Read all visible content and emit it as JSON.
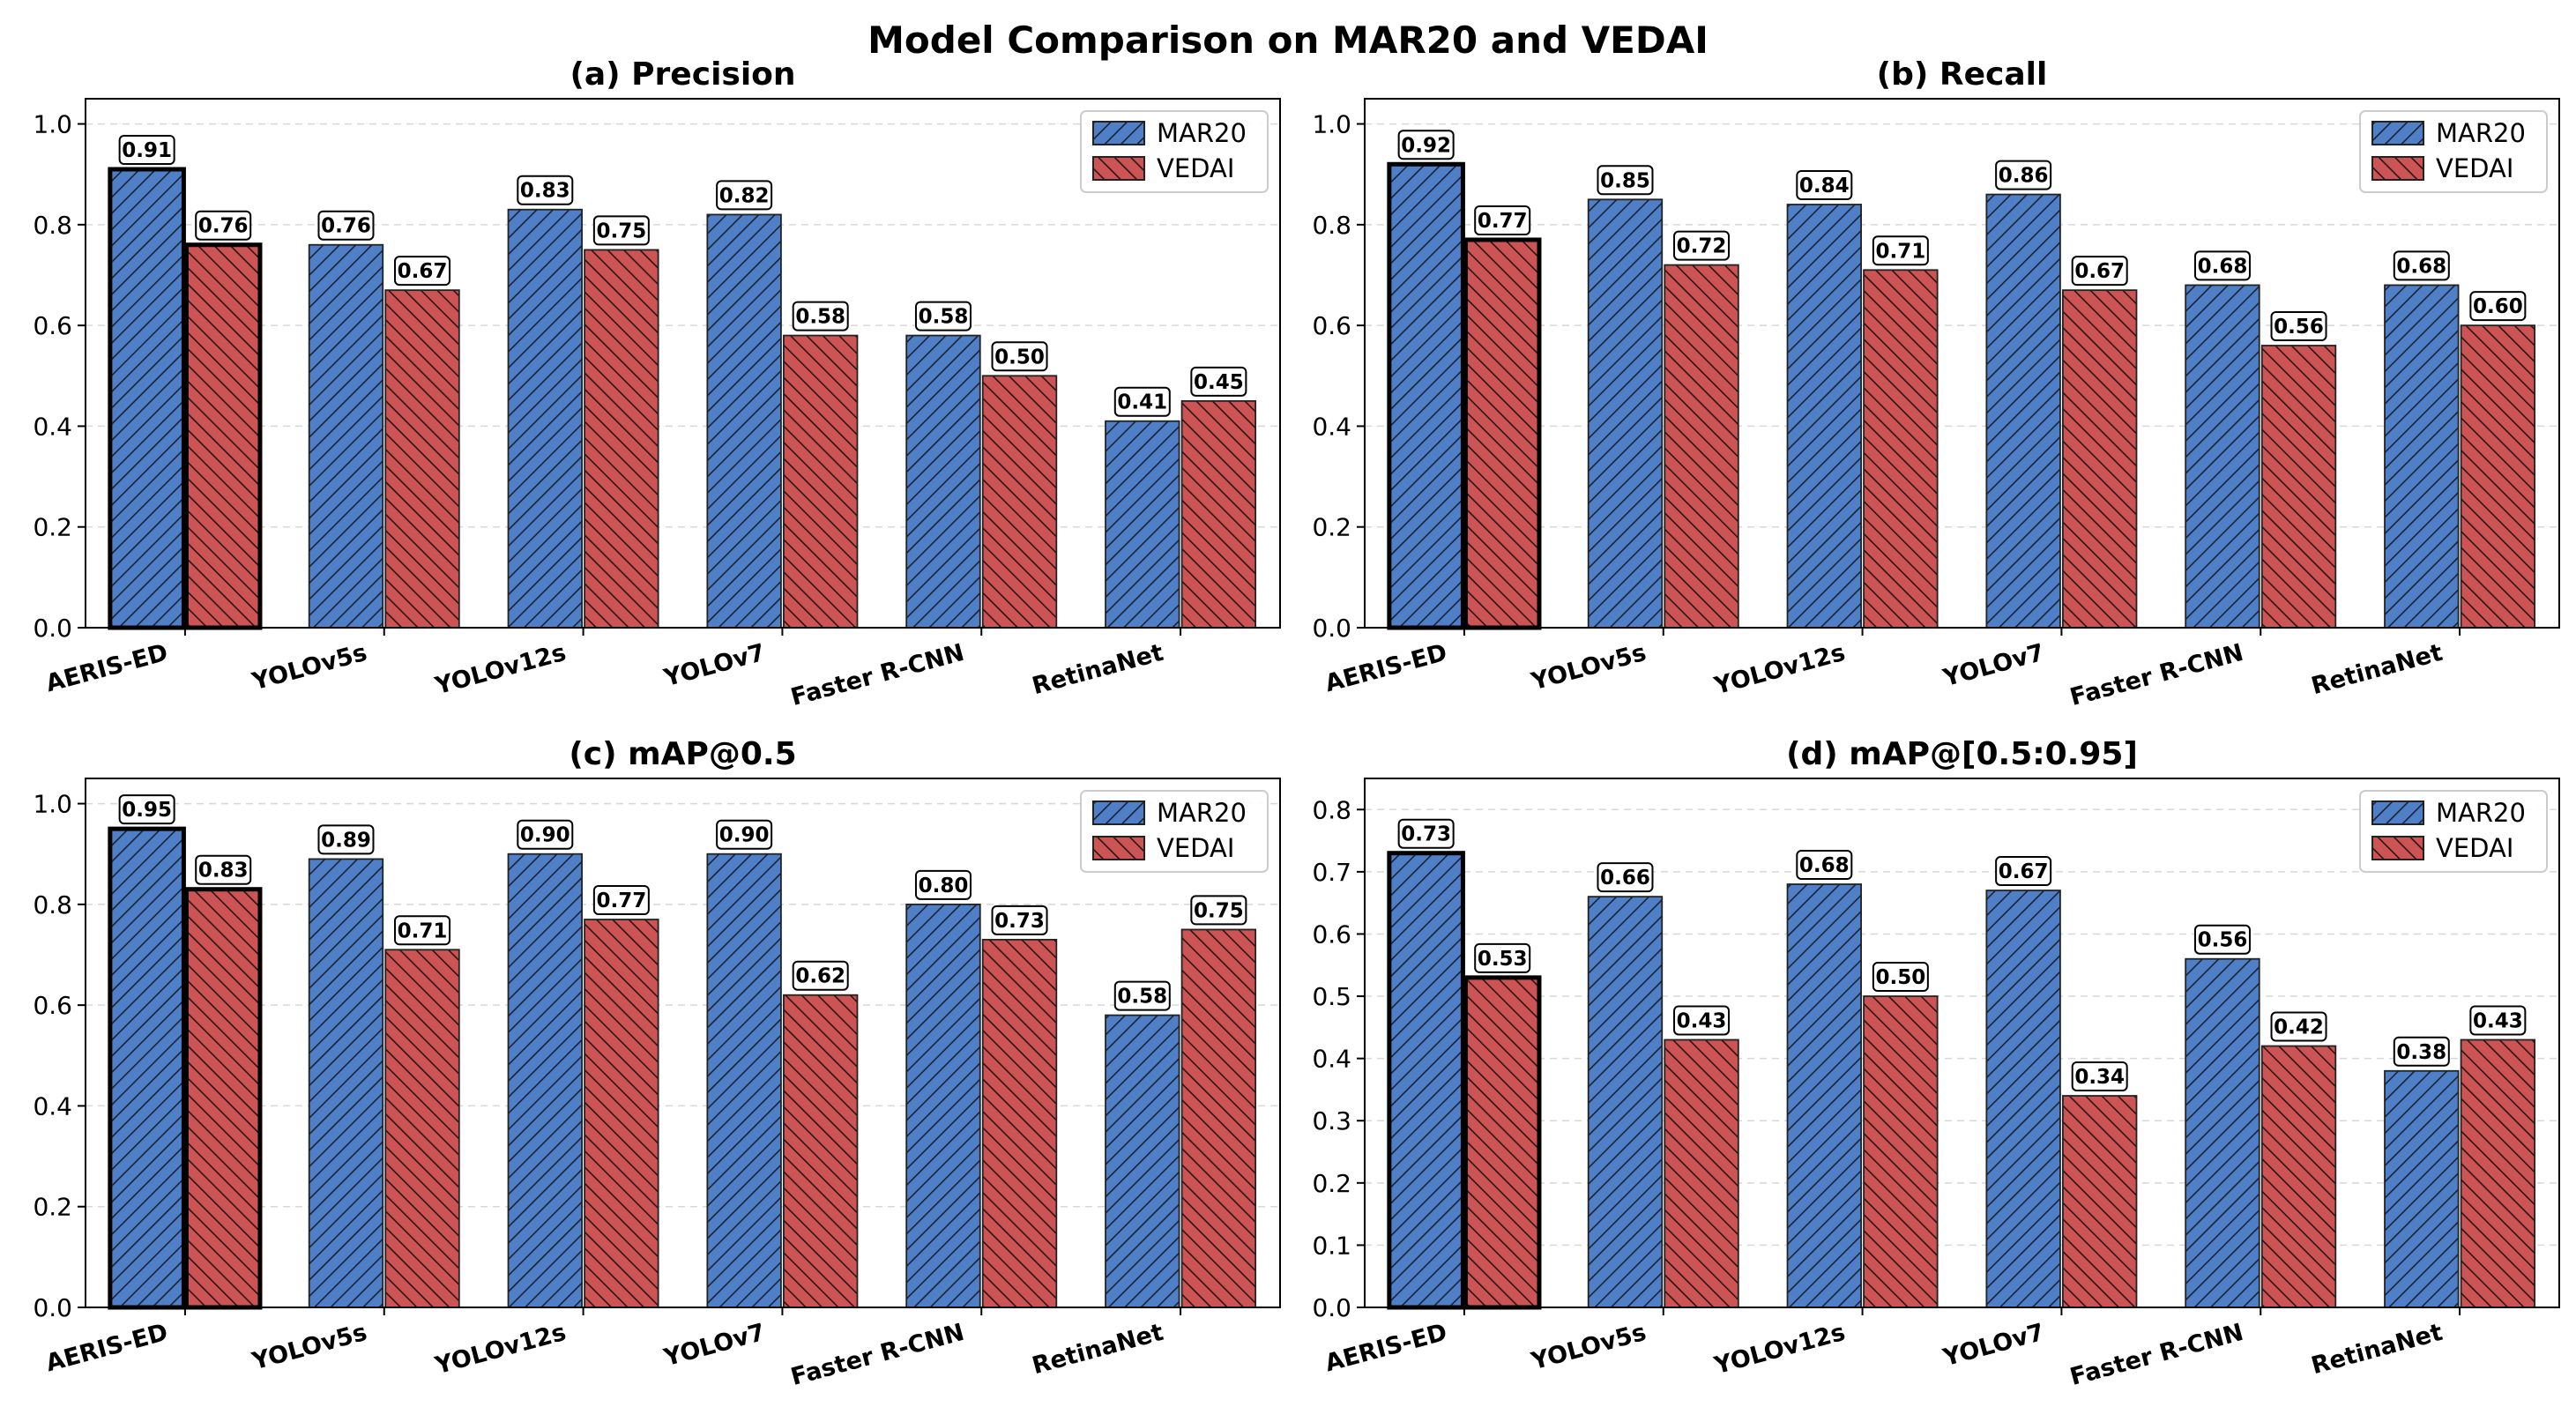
{
  "suptitle": "Model Comparison on MAR20 and VEDAI",
  "colors": {
    "MAR20": "#4f7fc6",
    "VEDAI": "#cc5454",
    "highlight_edge": "#000000",
    "grid": "#d8d8d8"
  },
  "chart_data": [
    {
      "type": "bar",
      "title": "(a) Precision",
      "categories": [
        "AERIS-ED",
        "YOLOv5s",
        "YOLOv12s",
        "YOLOv7",
        "Faster R-CNN",
        "RetinaNet"
      ],
      "series": [
        {
          "name": "MAR20",
          "values": [
            0.91,
            0.76,
            0.83,
            0.82,
            0.58,
            0.41
          ]
        },
        {
          "name": "VEDAI",
          "values": [
            0.76,
            0.67,
            0.75,
            0.58,
            0.5,
            0.45
          ]
        }
      ],
      "value_labels": {
        "MAR20": [
          "0.91",
          "0.76",
          "0.83",
          "0.82",
          "0.58",
          "0.41"
        ],
        "VEDAI": [
          "0.76",
          "0.67",
          "0.75",
          "0.58",
          "0.50",
          "0.45"
        ]
      },
      "ylim": [
        0,
        1.05
      ],
      "yticks": [
        0.0,
        0.2,
        0.4,
        0.6,
        0.8,
        1.0
      ],
      "ytick_labels": [
        "0.0",
        "0.2",
        "0.4",
        "0.6",
        "0.8",
        "1.0"
      ],
      "legend": [
        "MAR20",
        "VEDAI"
      ],
      "legend_position": "top-right",
      "grid": "y-dashed",
      "highlight_category": "AERIS-ED"
    },
    {
      "type": "bar",
      "title": "(b) Recall",
      "categories": [
        "AERIS-ED",
        "YOLOv5s",
        "YOLOv12s",
        "YOLOv7",
        "Faster R-CNN",
        "RetinaNet"
      ],
      "series": [
        {
          "name": "MAR20",
          "values": [
            0.92,
            0.85,
            0.84,
            0.86,
            0.68,
            0.68
          ]
        },
        {
          "name": "VEDAI",
          "values": [
            0.77,
            0.72,
            0.71,
            0.67,
            0.56,
            0.6
          ]
        }
      ],
      "value_labels": {
        "MAR20": [
          "0.92",
          "0.85",
          "0.84",
          "0.86",
          "0.68",
          "0.68"
        ],
        "VEDAI": [
          "0.77",
          "0.72",
          "0.71",
          "0.67",
          "0.56",
          "0.60"
        ]
      },
      "ylim": [
        0,
        1.05
      ],
      "yticks": [
        0.0,
        0.2,
        0.4,
        0.6,
        0.8,
        1.0
      ],
      "ytick_labels": [
        "0.0",
        "0.2",
        "0.4",
        "0.6",
        "0.8",
        "1.0"
      ],
      "legend": [
        "MAR20",
        "VEDAI"
      ],
      "legend_position": "top-right",
      "grid": "y-dashed",
      "highlight_category": "AERIS-ED"
    },
    {
      "type": "bar",
      "title": "(c) mAP@0.5",
      "categories": [
        "AERIS-ED",
        "YOLOv5s",
        "YOLOv12s",
        "YOLOv7",
        "Faster R-CNN",
        "RetinaNet"
      ],
      "series": [
        {
          "name": "MAR20",
          "values": [
            0.95,
            0.89,
            0.9,
            0.9,
            0.8,
            0.58
          ]
        },
        {
          "name": "VEDAI",
          "values": [
            0.83,
            0.71,
            0.77,
            0.62,
            0.73,
            0.75
          ]
        }
      ],
      "value_labels": {
        "MAR20": [
          "0.95",
          "0.89",
          "0.90",
          "0.90",
          "0.80",
          "0.58"
        ],
        "VEDAI": [
          "0.83",
          "0.71",
          "0.77",
          "0.62",
          "0.73",
          "0.75"
        ]
      },
      "ylim": [
        0,
        1.05
      ],
      "yticks": [
        0.0,
        0.2,
        0.4,
        0.6,
        0.8,
        1.0
      ],
      "ytick_labels": [
        "0.0",
        "0.2",
        "0.4",
        "0.6",
        "0.8",
        "1.0"
      ],
      "legend": [
        "MAR20",
        "VEDAI"
      ],
      "legend_position": "top-right",
      "grid": "y-dashed",
      "highlight_category": "AERIS-ED"
    },
    {
      "type": "bar",
      "title": "(d) mAP@[0.5:0.95]",
      "categories": [
        "AERIS-ED",
        "YOLOv5s",
        "YOLOv12s",
        "YOLOv7",
        "Faster R-CNN",
        "RetinaNet"
      ],
      "series": [
        {
          "name": "MAR20",
          "values": [
            0.73,
            0.66,
            0.68,
            0.67,
            0.56,
            0.38
          ]
        },
        {
          "name": "VEDAI",
          "values": [
            0.53,
            0.43,
            0.5,
            0.34,
            0.42,
            0.43
          ]
        }
      ],
      "value_labels": {
        "MAR20": [
          "0.73",
          "0.66",
          "0.68",
          "0.67",
          "0.56",
          "0.38"
        ],
        "VEDAI": [
          "0.53",
          "0.43",
          "0.50",
          "0.34",
          "0.42",
          "0.43"
        ]
      },
      "ylim": [
        0,
        0.85
      ],
      "yticks": [
        0.0,
        0.1,
        0.2,
        0.3,
        0.4,
        0.5,
        0.6,
        0.7,
        0.8
      ],
      "ytick_labels": [
        "0.0",
        "0.1",
        "0.2",
        "0.3",
        "0.4",
        "0.5",
        "0.6",
        "0.7",
        "0.8"
      ],
      "legend": [
        "MAR20",
        "VEDAI"
      ],
      "legend_position": "top-right",
      "grid": "y-dashed",
      "highlight_category": "AERIS-ED"
    }
  ]
}
